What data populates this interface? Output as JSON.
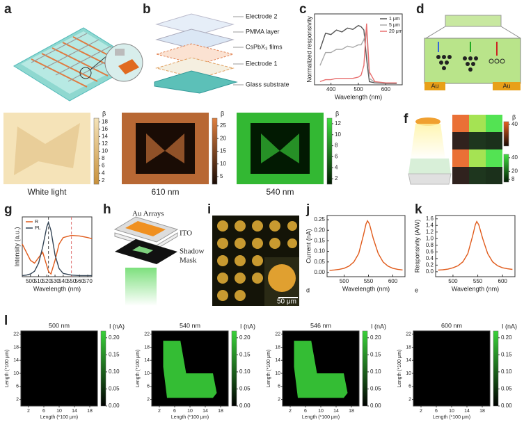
{
  "panel_labels": [
    "a",
    "b",
    "c",
    "d",
    "e",
    "f",
    "g",
    "h",
    "i",
    "j",
    "k",
    "l"
  ],
  "b": {
    "layers": [
      "Electrode 2",
      "PMMA layer",
      "CsPbX₃ films",
      "Electrode 1",
      "Glass substrate"
    ]
  },
  "c": {
    "type": "line",
    "xlabel": "Wavelength (nm)",
    "ylabel": "Normalized responsivity",
    "x": [
      360,
      380,
      400,
      420,
      440,
      460,
      480,
      500,
      510,
      520,
      530,
      540,
      560,
      600,
      640
    ],
    "series": [
      {
        "name": "1 μm",
        "color": "#555555",
        "values": [
          0.55,
          0.8,
          0.78,
          0.85,
          0.82,
          0.88,
          0.86,
          0.92,
          0.9,
          0.85,
          0.4,
          0.05,
          0.03,
          0.02,
          0.02
        ]
      },
      {
        "name": "5 μm",
        "color": "#aaaaaa",
        "values": [
          0.3,
          0.5,
          0.5,
          0.55,
          0.55,
          0.6,
          0.58,
          0.62,
          0.62,
          0.7,
          0.85,
          0.1,
          0.04,
          0.03,
          0.03
        ]
      },
      {
        "name": "20 μm",
        "color": "#e87070",
        "values": [
          0.05,
          0.08,
          0.08,
          0.1,
          0.1,
          0.1,
          0.1,
          0.12,
          0.15,
          0.3,
          0.95,
          0.2,
          0.05,
          0.03,
          0.03
        ]
      }
    ],
    "xlim": [
      340,
      660
    ],
    "ylim": [
      0,
      1.1
    ],
    "xticks": [
      400,
      500,
      600
    ],
    "legend": "upper right"
  },
  "d": {
    "electrodes": [
      "Au",
      "Au"
    ]
  },
  "e": {
    "maps": [
      {
        "caption": "White light",
        "colorbar_title": "β",
        "cticks": [
          2,
          4,
          6,
          8,
          10,
          12,
          14,
          16,
          18
        ],
        "clim": [
          1,
          19
        ],
        "colors": [
          "#c8903a",
          "#f5e3b8"
        ]
      },
      {
        "caption": "610 nm",
        "colorbar_title": "β",
        "cticks": [
          5,
          10,
          15,
          20,
          25
        ],
        "clim": [
          2,
          28
        ],
        "colors": [
          "#1a0c05",
          "#e08040"
        ]
      },
      {
        "caption": "540 nm",
        "colorbar_title": "β",
        "cticks": [
          2,
          4,
          6,
          8,
          10,
          12
        ],
        "clim": [
          1,
          13
        ],
        "colors": [
          "#021a02",
          "#40e040"
        ]
      }
    ]
  },
  "f": {
    "colorbar_title": "β",
    "top": {
      "cticks": [
        40
      ],
      "clim": [
        0,
        45
      ],
      "colors": [
        "#1a0a05",
        "#e86020"
      ]
    },
    "bottom": {
      "cticks": [
        8,
        20,
        40
      ],
      "clim": [
        4,
        45
      ],
      "colors": [
        "#021a02",
        "#40e040"
      ]
    }
  },
  "g": {
    "type": "line",
    "xlabel": "Wavelength (nm)",
    "ylabel": "Intensity (a.u.)",
    "x": [
      490,
      495,
      500,
      505,
      510,
      515,
      520,
      522,
      525,
      530,
      535,
      540,
      550,
      560,
      570,
      575
    ],
    "series": [
      {
        "name": "R",
        "color": "#e05a1a",
        "values": [
          0.6,
          0.45,
          0.3,
          0.25,
          0.35,
          0.45,
          0.2,
          0.1,
          0.05,
          0.3,
          0.6,
          0.72,
          0.76,
          0.75,
          0.72,
          0.7
        ]
      },
      {
        "name": "PL",
        "color": "#334455",
        "values": [
          0.02,
          0.03,
          0.05,
          0.1,
          0.25,
          0.55,
          0.92,
          1.0,
          0.85,
          0.4,
          0.15,
          0.06,
          0.03,
          0.02,
          0.02,
          0.02
        ]
      }
    ],
    "xlim": [
      490,
      575
    ],
    "ylim": [
      0,
      1.1
    ],
    "xticks": [
      500,
      510,
      520,
      530,
      540,
      550,
      560,
      570
    ],
    "markers": [
      522,
      550
    ],
    "legend": "upper left"
  },
  "h": {
    "labels": [
      "Au Arrays",
      "ITO",
      "Shadow",
      "Mask"
    ]
  },
  "i": {
    "scale_bar": "50 μm"
  },
  "j": {
    "type": "line",
    "xlabel": "Wavelength (nm)",
    "ylabel": "Current (nA)",
    "note": "d",
    "x": [
      470,
      480,
      490,
      500,
      510,
      520,
      530,
      540,
      545,
      548,
      552,
      560,
      570,
      580,
      590,
      600,
      610,
      620
    ],
    "series": [
      {
        "color": "#e05a1a",
        "values": [
          0.01,
          0.012,
          0.015,
          0.02,
          0.03,
          0.05,
          0.09,
          0.18,
          0.23,
          0.245,
          0.23,
          0.16,
          0.09,
          0.05,
          0.03,
          0.02,
          0.015,
          0.012
        ]
      }
    ],
    "xlim": [
      465,
      625
    ],
    "ylim": [
      -0.02,
      0.27
    ],
    "xticks": [
      500,
      550,
      600
    ],
    "yticks": [
      {
        "value": 0,
        "label": "0.00"
      },
      {
        "value": 0.05,
        "label": "0.05"
      },
      {
        "value": 0.1,
        "label": "0.10"
      },
      {
        "value": 0.15,
        "label": "0.15"
      },
      {
        "value": 0.2,
        "label": "0.20"
      },
      {
        "value": 0.25,
        "label": "0.25"
      }
    ]
  },
  "k": {
    "type": "line",
    "xlabel": "Wavelength (nm)",
    "ylabel": "Responsivity (A/W)",
    "note": "e",
    "x": [
      470,
      480,
      490,
      500,
      510,
      520,
      530,
      540,
      545,
      548,
      552,
      560,
      570,
      580,
      590,
      600,
      610,
      620
    ],
    "series": [
      {
        "color": "#e05a1a",
        "values": [
          0.05,
          0.06,
          0.08,
          0.12,
          0.18,
          0.3,
          0.55,
          1.1,
          1.42,
          1.52,
          1.42,
          1.0,
          0.55,
          0.3,
          0.18,
          0.12,
          0.09,
          0.07
        ]
      }
    ],
    "xlim": [
      465,
      625
    ],
    "ylim": [
      -0.15,
      1.7
    ],
    "xticks": [
      500,
      550,
      600
    ],
    "yticks": [
      {
        "value": 0,
        "label": "0.0"
      },
      {
        "value": 0.2,
        "label": "0.2"
      },
      {
        "value": 0.4,
        "label": "0.4"
      },
      {
        "value": 0.6,
        "label": "0.6"
      },
      {
        "value": 0.8,
        "label": "0.8"
      },
      {
        "value": 1,
        "label": "1.0"
      },
      {
        "value": 1.2,
        "label": "1.2"
      },
      {
        "value": 1.4,
        "label": "1.4"
      },
      {
        "value": 1.6,
        "label": "1.6"
      }
    ]
  },
  "l": {
    "maps": [
      {
        "title": "500 nm",
        "lit": false
      },
      {
        "title": "540 nm",
        "lit": true
      },
      {
        "title": "546 nm",
        "lit": true
      },
      {
        "title": "600 nm",
        "lit": false
      }
    ],
    "xlabel": "Length (*100 μm)",
    "ylabel": "Length (*100 μm)",
    "xticks": [
      2,
      6,
      10,
      14,
      18
    ],
    "yticks": [
      2,
      6,
      10,
      14,
      18,
      22
    ],
    "xlim": [
      0,
      20
    ],
    "ylim": [
      0,
      23
    ],
    "colorbar_title": "I (nA)",
    "clim": [
      0,
      0.22
    ],
    "colors": [
      "#000000",
      "#3ad23a"
    ],
    "cticks": [
      {
        "value": 0,
        "label": "0.00"
      },
      {
        "value": 0.05,
        "label": "0.05"
      },
      {
        "value": 0.1,
        "label": "0.10"
      },
      {
        "value": 0.15,
        "label": "0.15"
      },
      {
        "value": 0.2,
        "label": "0.20"
      }
    ]
  }
}
